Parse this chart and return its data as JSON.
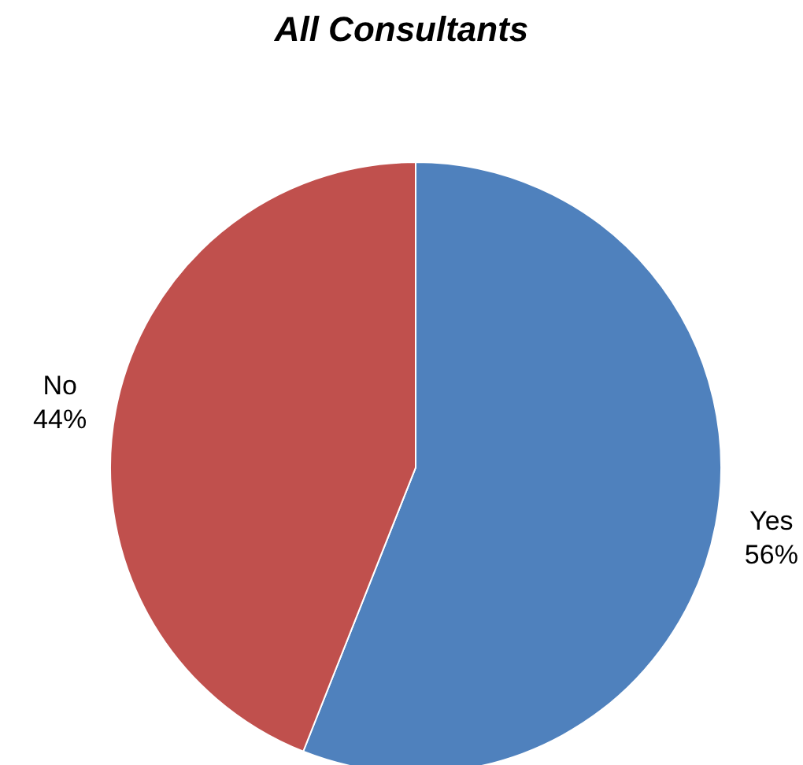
{
  "chart_data": {
    "type": "pie",
    "title": "All Consultants",
    "categories": [
      "Yes",
      "No"
    ],
    "values": [
      56,
      44
    ],
    "value_labels": [
      "56%",
      "44%"
    ],
    "colors": [
      "#4f81bd",
      "#c0504d"
    ],
    "legend": false
  }
}
